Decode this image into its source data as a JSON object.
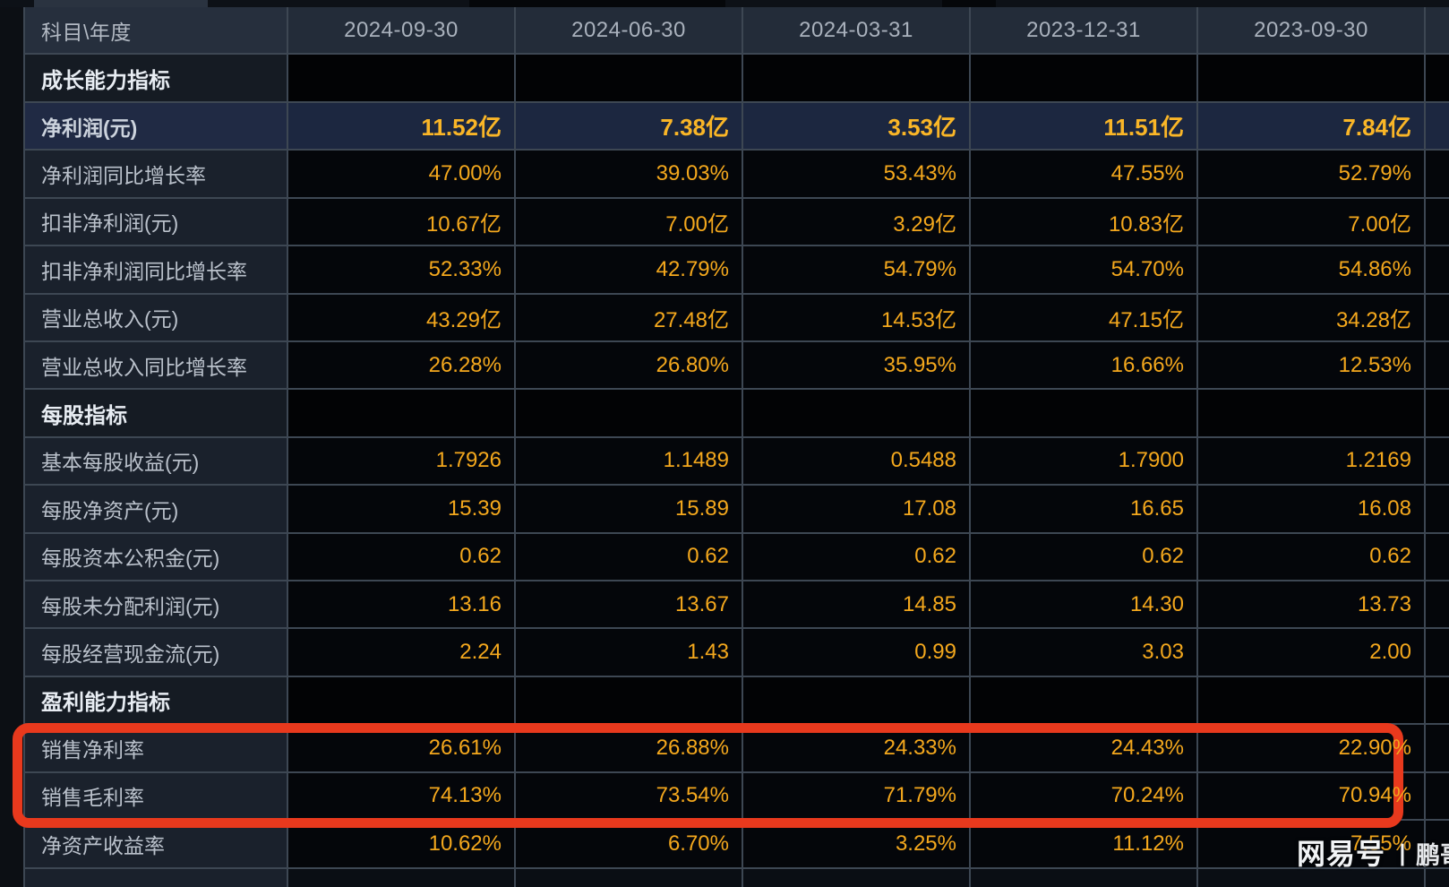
{
  "colors": {
    "accent_value": "#f4a81d",
    "highlight_value": "#fab627",
    "annotation_red": "#e8391d",
    "grid_line": "#3d4753",
    "header_bg": "#242d3a",
    "label_cell_bg": "#1a212c",
    "value_cell_bg": "#04060a",
    "highlight_row_bg": "#1c2740"
  },
  "table": {
    "header": {
      "label": "科目\\年度",
      "columns": [
        "2024-09-30",
        "2024-06-30",
        "2024-03-31",
        "2023-12-31",
        "2023-09-30"
      ]
    },
    "rows": [
      {
        "type": "section",
        "label": "成长能力指标",
        "values": [
          "",
          "",
          "",
          "",
          ""
        ]
      },
      {
        "type": "highlight",
        "label": "净利润(元)",
        "values": [
          "11.52亿",
          "7.38亿",
          "3.53亿",
          "11.51亿",
          "7.84亿"
        ]
      },
      {
        "type": "data",
        "label": "净利润同比增长率",
        "values": [
          "47.00%",
          "39.03%",
          "53.43%",
          "47.55%",
          "52.79%"
        ]
      },
      {
        "type": "data",
        "label": "扣非净利润(元)",
        "values": [
          "10.67亿",
          "7.00亿",
          "3.29亿",
          "10.83亿",
          "7.00亿"
        ]
      },
      {
        "type": "data",
        "label": "扣非净利润同比增长率",
        "values": [
          "52.33%",
          "42.79%",
          "54.79%",
          "54.70%",
          "54.86%"
        ]
      },
      {
        "type": "data",
        "label": "营业总收入(元)",
        "values": [
          "43.29亿",
          "27.48亿",
          "14.53亿",
          "47.15亿",
          "34.28亿"
        ]
      },
      {
        "type": "data",
        "label": "营业总收入同比增长率",
        "values": [
          "26.28%",
          "26.80%",
          "35.95%",
          "16.66%",
          "12.53%"
        ]
      },
      {
        "type": "section",
        "label": "每股指标",
        "values": [
          "",
          "",
          "",
          "",
          ""
        ]
      },
      {
        "type": "data",
        "label": "基本每股收益(元)",
        "values": [
          "1.7926",
          "1.1489",
          "0.5488",
          "1.7900",
          "1.2169"
        ]
      },
      {
        "type": "data",
        "label": "每股净资产(元)",
        "values": [
          "15.39",
          "15.89",
          "17.08",
          "16.65",
          "16.08"
        ]
      },
      {
        "type": "data",
        "label": "每股资本公积金(元)",
        "values": [
          "0.62",
          "0.62",
          "0.62",
          "0.62",
          "0.62"
        ]
      },
      {
        "type": "data",
        "label": "每股未分配利润(元)",
        "values": [
          "13.16",
          "13.67",
          "14.85",
          "14.30",
          "13.73"
        ]
      },
      {
        "type": "data",
        "label": "每股经营现金流(元)",
        "values": [
          "2.24",
          "1.43",
          "0.99",
          "3.03",
          "2.00"
        ]
      },
      {
        "type": "section",
        "label": "盈利能力指标",
        "values": [
          "",
          "",
          "",
          "",
          ""
        ]
      },
      {
        "type": "data",
        "label": "销售净利率",
        "values": [
          "26.61%",
          "26.88%",
          "24.33%",
          "24.43%",
          "22.90%"
        ]
      },
      {
        "type": "data",
        "label": "销售毛利率",
        "values": [
          "74.13%",
          "73.54%",
          "71.79%",
          "70.24%",
          "70.94%"
        ]
      },
      {
        "type": "data",
        "label": "净资产收益率",
        "values": [
          "10.62%",
          "6.70%",
          "3.25%",
          "11.12%",
          "7.55%"
        ]
      },
      {
        "type": "partial",
        "label": "",
        "values": [
          "",
          "",
          "",
          "",
          ""
        ]
      }
    ]
  },
  "annotation": {
    "purpose": "red-box-highlighting-sales-margin-rows",
    "rows_covered": [
      "销售净利率",
      "销售毛利率"
    ]
  },
  "watermark": {
    "brand": "网易号",
    "divider": "丨",
    "name": "鹏哥投研"
  }
}
